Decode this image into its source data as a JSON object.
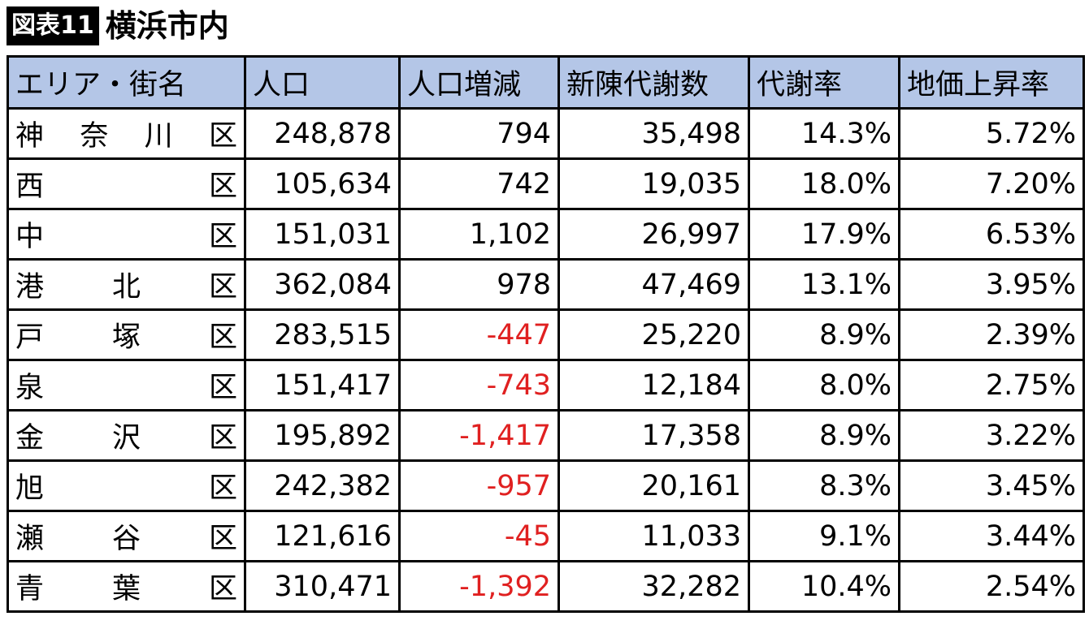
{
  "header": {
    "label": "図表11",
    "title": "横浜市内"
  },
  "table": {
    "columns": [
      "エリア・街名",
      "人口",
      "人口増減",
      "新陳代謝数",
      "代謝率",
      "地価上昇率"
    ],
    "rows": [
      [
        "神奈川区",
        "248,878",
        "794",
        "35,498",
        "14.3%",
        "5.72%"
      ],
      [
        "西区",
        "105,634",
        "742",
        "19,035",
        "18.0%",
        "7.20%"
      ],
      [
        "中区",
        "151,031",
        "1,102",
        "26,997",
        "17.9%",
        "6.53%"
      ],
      [
        "港北区",
        "362,084",
        "978",
        "47,469",
        "13.1%",
        "3.95%"
      ],
      [
        "戸塚区",
        "283,515",
        "-447",
        "25,220",
        "8.9%",
        "2.39%"
      ],
      [
        "泉区",
        "151,417",
        "-743",
        "12,184",
        "8.0%",
        "2.75%"
      ],
      [
        "金沢区",
        "195,892",
        "-1,417",
        "17,358",
        "8.9%",
        "3.22%"
      ],
      [
        "旭区",
        "242,382",
        "-957",
        "20,161",
        "8.3%",
        "3.45%"
      ],
      [
        "瀬谷区",
        "121,616",
        "-45",
        "11,033",
        "9.1%",
        "3.44%"
      ],
      [
        "青葉区",
        "310,471",
        "-1,392",
        "32,282",
        "10.4%",
        "2.54%"
      ]
    ]
  }
}
